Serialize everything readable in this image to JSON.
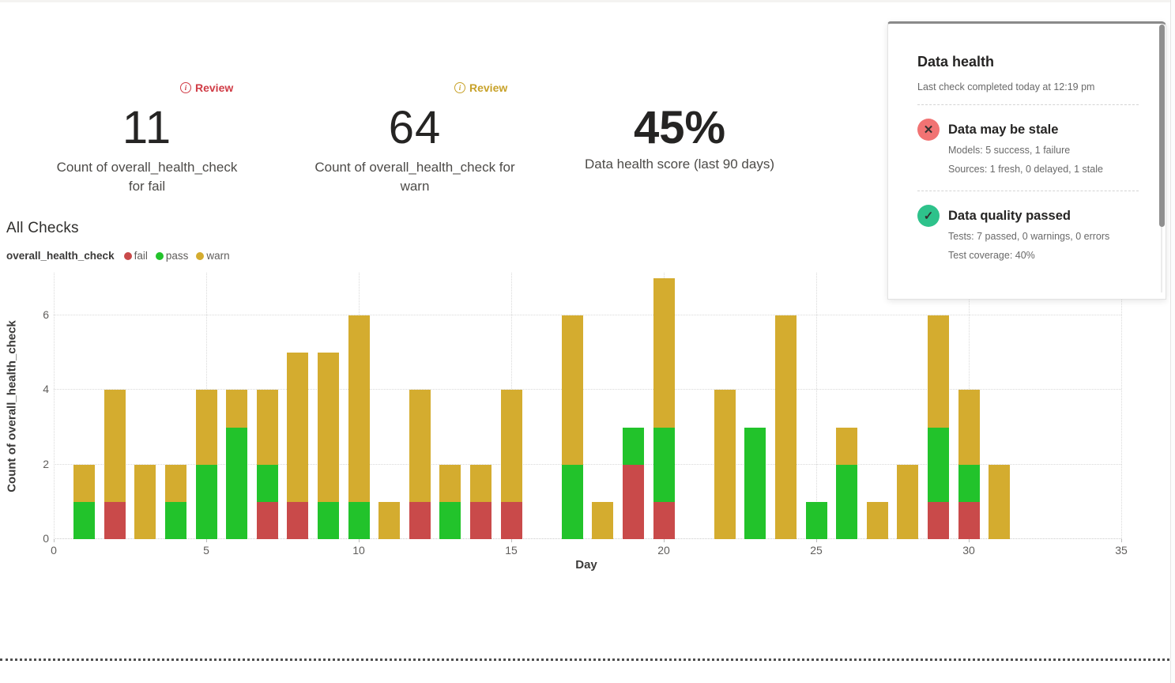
{
  "metrics": [
    {
      "badge": {
        "icon": "info",
        "label": "Review",
        "color": "#d03c46"
      },
      "value": "11",
      "caption_line1": "Count of overall_health_check",
      "caption_line2": "for fail"
    },
    {
      "badge": {
        "icon": "info",
        "label": "Review",
        "color": "#c8a22a"
      },
      "value": "64",
      "caption_line1": "Count of overall_health_check for",
      "caption_line2": "warn"
    },
    {
      "value": "45%",
      "caption_line1": "Data health score (last 90 days)"
    }
  ],
  "section_title": "All Checks",
  "legend": {
    "title": "overall_health_check",
    "items": [
      {
        "label": "fail",
        "color": "#c94a4a"
      },
      {
        "label": "pass",
        "color": "#22c32b"
      },
      {
        "label": "warn",
        "color": "#d4ac2f"
      }
    ]
  },
  "chart_data": {
    "type": "bar",
    "subtype": "stacked",
    "title": "All Checks",
    "xlabel": "Day",
    "ylabel": "Count of overall_health_check",
    "xlim": [
      0,
      35
    ],
    "ylim": [
      0,
      7.15
    ],
    "x_ticks": [
      "0",
      "5",
      "10",
      "15",
      "20",
      "25",
      "30",
      "35"
    ],
    "x_tick_values": [
      0,
      5,
      10,
      15,
      20,
      25,
      30,
      35
    ],
    "y_ticks": [
      "0",
      "2",
      "4",
      "6"
    ],
    "y_tick_values": [
      0,
      2,
      4,
      6
    ],
    "grid": "dotted",
    "x": [
      1,
      2,
      3,
      4,
      5,
      6,
      7,
      8,
      9,
      10,
      11,
      12,
      13,
      14,
      15,
      16,
      17,
      18,
      19,
      20,
      21,
      22,
      23,
      24,
      25,
      26,
      27,
      28,
      29,
      30,
      31
    ],
    "series": [
      {
        "name": "fail",
        "color": "#c94a4a",
        "values": [
          0,
          1,
          0,
          0,
          0,
          0,
          1,
          1,
          0,
          0,
          0,
          1,
          0,
          1,
          1,
          0,
          0,
          0,
          2,
          1,
          0,
          0,
          0,
          0,
          0,
          0,
          0,
          0,
          1,
          1,
          0
        ]
      },
      {
        "name": "pass",
        "color": "#22c32b",
        "values": [
          1,
          0,
          0,
          1,
          2,
          3,
          1,
          0,
          1,
          1,
          0,
          0,
          1,
          0,
          0,
          0,
          2,
          0,
          1,
          2,
          0,
          0,
          3,
          0,
          1,
          2,
          0,
          0,
          2,
          1,
          0
        ]
      },
      {
        "name": "warn",
        "color": "#d4ac2f",
        "values": [
          1,
          3,
          2,
          1,
          2,
          1,
          2,
          4,
          4,
          5,
          1,
          3,
          1,
          1,
          3,
          0,
          4,
          1,
          0,
          4,
          0,
          4,
          0,
          6,
          0,
          1,
          1,
          2,
          3,
          2,
          2
        ]
      }
    ]
  },
  "health_panel": {
    "title": "Data health",
    "subtitle": "Last check completed today at 12:19 pm",
    "sections": [
      {
        "icon": "x-circle",
        "icon_bg": "#f17373",
        "icon_glyph": "✕",
        "title": "Data may be stale",
        "lines": [
          "Models: 5 success, 1 failure",
          "Sources: 1 fresh, 0 delayed, 1 stale"
        ]
      },
      {
        "icon": "check-circle",
        "icon_bg": "#2ec28b",
        "icon_glyph": "✓",
        "title": "Data quality passed",
        "lines": [
          "Tests: 7 passed, 0 warnings, 0 errors",
          "Test coverage: 40%"
        ]
      }
    ]
  }
}
